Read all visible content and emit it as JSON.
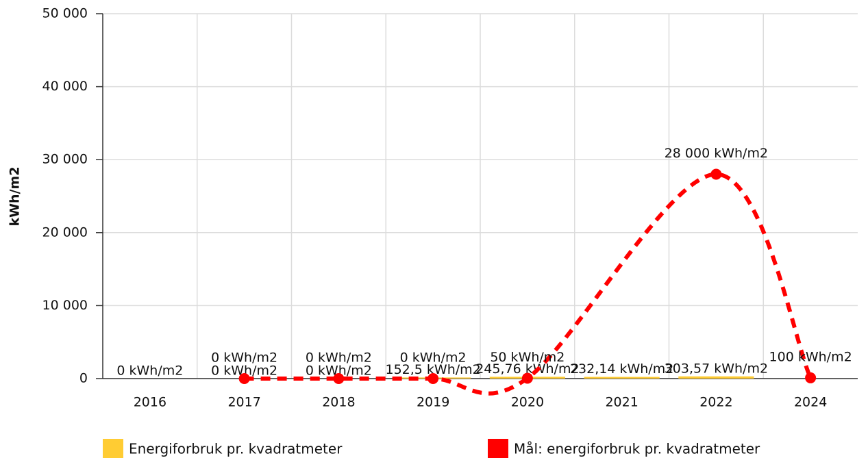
{
  "chart_data": {
    "type": "bar_line",
    "y_label": "kWh/m2",
    "categories": [
      "2016",
      "2017",
      "2018",
      "2019",
      "2020",
      "2021",
      "2022",
      "2024"
    ],
    "series": [
      {
        "name": "Energiforbruk pr. kvadratmeter",
        "type": "bar",
        "color": "#ffcc33",
        "values": [
          0,
          0,
          0,
          152.5,
          245.76,
          232.14,
          303.57,
          null
        ],
        "value_labels": [
          "0 kWh/m2",
          "0 kWh/m2",
          "0 kWh/m2",
          "152,5 kWh/m2",
          "245,76 kWh/m2",
          "232,14 kWh/m2",
          "303,57 kWh/m2",
          null
        ]
      },
      {
        "name": "Mål: energiforbruk pr. kvadratmeter",
        "type": "line",
        "color": "#ff0000",
        "dashed": true,
        "smooth": true,
        "connect_nulls": true,
        "values": [
          null,
          0,
          0,
          0,
          50,
          null,
          28000,
          100
        ],
        "value_labels": [
          null,
          "0 kWh/m2",
          "0 kWh/m2",
          "0 kWh/m2",
          "50 kWh/m2",
          null,
          "28 000 kWh/m2",
          "100 kWh/m2"
        ]
      }
    ],
    "ylim": [
      0,
      50000
    ],
    "yticks": [
      0,
      {
        "value": 10000,
        "label": "10 000"
      },
      {
        "value": 20000,
        "label": "20 000"
      },
      {
        "value": 30000,
        "label": "30 000"
      },
      {
        "value": 40000,
        "label": "40 000"
      },
      {
        "value": 50000,
        "label": "50 000"
      }
    ],
    "grid": true,
    "legend": "bottom"
  }
}
